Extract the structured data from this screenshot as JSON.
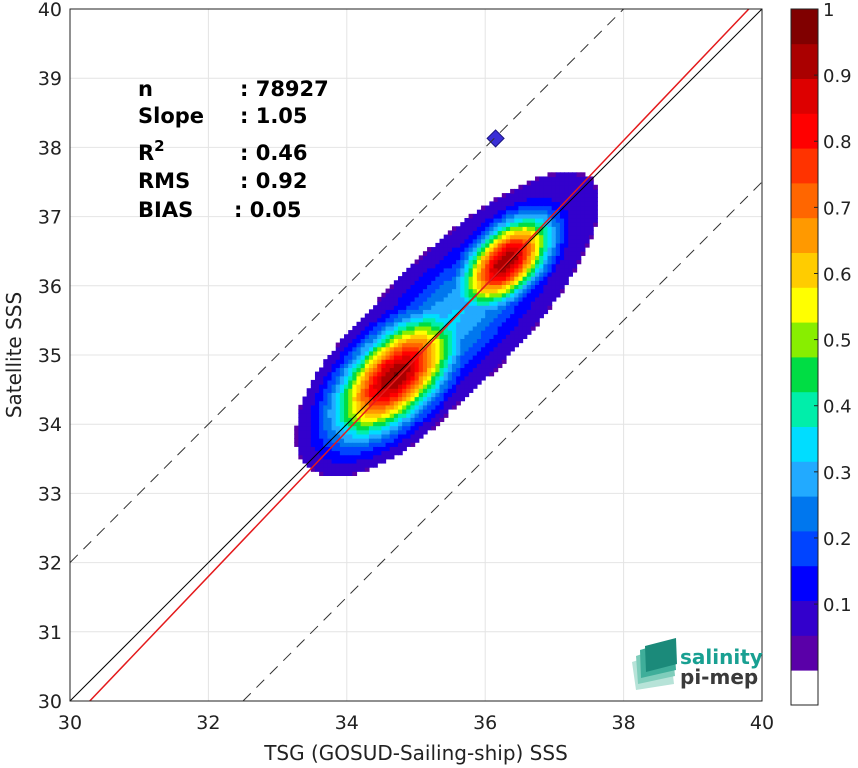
{
  "chart_data": {
    "type": "scatter",
    "subtype": "density-contour",
    "xlabel": "TSG (GOSUD-Sailing-ship) SSS",
    "ylabel": "Satellite SSS",
    "xlim": [
      30,
      40
    ],
    "ylim": [
      30,
      40
    ],
    "xticks": [
      "30",
      "32",
      "34",
      "36",
      "38",
      "40"
    ],
    "yticks": [
      "30",
      "31",
      "32",
      "33",
      "34",
      "35",
      "36",
      "37",
      "38",
      "39",
      "40"
    ],
    "grid": true,
    "stats": [
      {
        "name": "n",
        "value": ": 78927"
      },
      {
        "name": "Slope",
        "value": ": 1.05"
      },
      {
        "name": "R",
        "sup": "2",
        "value": ": 0.46"
      },
      {
        "name": "RMS",
        "value": ": 0.92"
      },
      {
        "name": "BIAS",
        "value": ": 0.05"
      }
    ],
    "reference_lines": {
      "identity": {
        "intercept": 0,
        "slope": 1,
        "color": "#000000"
      },
      "fit": {
        "intercept": -1.8,
        "slope": 1.05,
        "color": "#e41a1c"
      },
      "bounds": [
        {
          "intercept": 2.0,
          "slope": 1
        },
        {
          "intercept": -2.5,
          "slope": 1
        }
      ]
    },
    "density": {
      "max_value": 1.0,
      "hotspots": [
        {
          "x": 34.7,
          "y": 34.7,
          "value": 0.95
        },
        {
          "x": 36.3,
          "y": 36.35,
          "value": 0.95
        }
      ],
      "isolated_points": [
        {
          "x": 36.15,
          "y": 38.13
        }
      ]
    },
    "colorbar": {
      "ticks": [
        "0.1",
        "0.2",
        "0.3",
        "0.4",
        "0.5",
        "0.6",
        "0.7",
        "0.8",
        "0.9",
        "1"
      ],
      "colors": [
        "#ffffff",
        "#5a00a8",
        "#3300cc",
        "#0000ff",
        "#0044ff",
        "#0077ee",
        "#22aaff",
        "#00ddff",
        "#00eeaa",
        "#00dd44",
        "#88ee00",
        "#ffff00",
        "#ffcc00",
        "#ff9900",
        "#ff6600",
        "#ff3300",
        "#ff0000",
        "#dd0000",
        "#aa0000",
        "#800000"
      ]
    }
  },
  "logo": {
    "line1": "salinity",
    "line2": "pi-mep"
  }
}
